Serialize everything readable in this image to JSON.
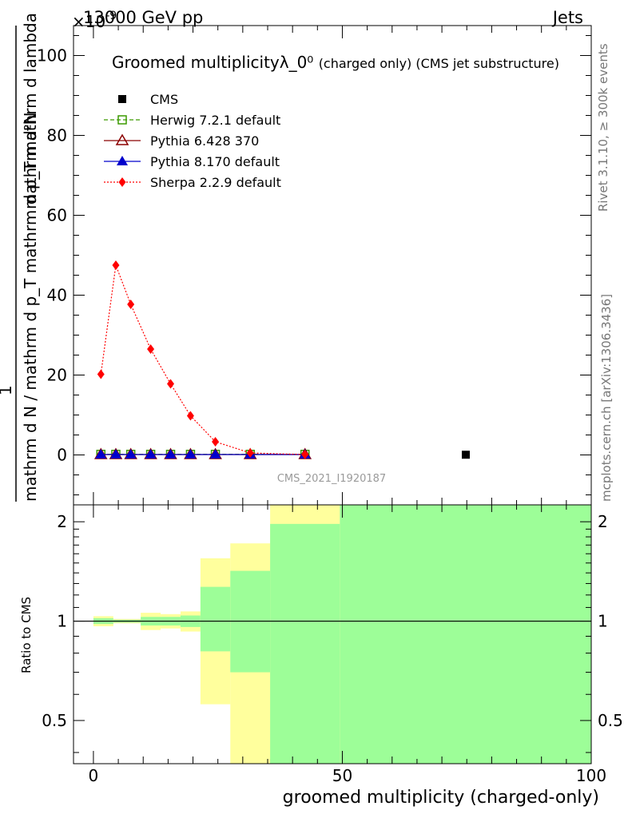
{
  "header": {
    "left": "13000 GeV pp",
    "right": "Jets",
    "exponent": "×10",
    "exponent_sup": "-9"
  },
  "side_labels": {
    "rivet": "Rivet 3.1.10, ≥ 300k events",
    "mcplots": "mcplots.cern.ch [arXiv:1306.3436]"
  },
  "watermark": "CMS_2021_I1920187",
  "colors": {
    "cms": "#000000",
    "herwig": "#3c9a00",
    "pythia6": "#8b0000",
    "pythia8": "#0000cc",
    "sherpa": "#ff0000",
    "band_inner": "#9dfe98",
    "band_outer": "#ffff9d"
  },
  "chart_data": [
    {
      "type": "line",
      "title": "Groomed multiplicityλ_0⁰",
      "title_suffix": "(charged only) (CMS jet substructure)",
      "ylabel_top": "mathrm d²N",
      "ylabel_bottom": "mathrm d N / mathrm d p_T mathrm d p_T mathrm d lambda",
      "ylabel_prefix": "1",
      "xlim": [
        -4,
        100
      ],
      "ylim": [
        -12.5,
        107.5
      ],
      "yticks": [
        0,
        20,
        40,
        60,
        80,
        100
      ],
      "x": [
        1.5,
        4.5,
        7.5,
        11.5,
        15.5,
        19.5,
        24.5,
        31.5,
        42.5
      ],
      "series": [
        {
          "name": "CMS",
          "x": [
            74.8
          ],
          "values": [
            0.05
          ],
          "marker": "square"
        },
        {
          "name": "Herwig 7.2.1 default",
          "values": [
            0.15,
            0.15,
            0.15,
            0.15,
            0.15,
            0.15,
            0.15,
            0.15,
            0.15
          ],
          "marker": "open-square",
          "style": "dashed"
        },
        {
          "name": "Pythia 6.428 370",
          "values": [
            0.1,
            0.1,
            0.1,
            0.1,
            0.1,
            0.1,
            0.1,
            0.1,
            0.1
          ],
          "marker": "open-triangle",
          "style": "solid"
        },
        {
          "name": "Pythia 8.170 default",
          "values": [
            0.1,
            0.1,
            0.1,
            0.1,
            0.1,
            0.1,
            0.1,
            0.1,
            0.1
          ],
          "marker": "filled-triangle",
          "style": "solid"
        },
        {
          "name": "Sherpa 2.2.9 default",
          "values": [
            20.2,
            47.5,
            37.7,
            26.5,
            17.8,
            9.8,
            3.3,
            0.5,
            0.1
          ],
          "marker": "diamond",
          "style": "dotted"
        }
      ]
    },
    {
      "type": "area",
      "ylabel": "Ratio to CMS",
      "xlabel": "groomed multiplicity (charged-only)",
      "xlim": [
        -4,
        100
      ],
      "ylim": [
        0.37,
        2.25
      ],
      "yticks": [
        0.5,
        1,
        2
      ],
      "ytick_labels": [
        "0.5",
        "1",
        "2"
      ],
      "xticks": [
        0,
        50,
        100
      ],
      "xtick_labels": [
        "0",
        "50",
        "100"
      ],
      "reference_line": 1,
      "bands": [
        {
          "x0": 0,
          "x1": 4,
          "inner": [
            0.98,
            1.02
          ],
          "outer": [
            0.965,
            1.035
          ]
        },
        {
          "x0": 4,
          "x1": 9.5,
          "inner": [
            0.99,
            1.01
          ],
          "outer": [
            0.985,
            1.015
          ]
        },
        {
          "x0": 9.5,
          "x1": 13.5,
          "inner": [
            0.97,
            1.03
          ],
          "outer": [
            0.94,
            1.06
          ]
        },
        {
          "x0": 13.5,
          "x1": 17.5,
          "inner": [
            0.97,
            1.03
          ],
          "outer": [
            0.95,
            1.05
          ]
        },
        {
          "x0": 17.5,
          "x1": 21.5,
          "inner": [
            0.96,
            1.04
          ],
          "outer": [
            0.93,
            1.07
          ]
        },
        {
          "x0": 21.5,
          "x1": 27.5,
          "inner": [
            0.81,
            1.27
          ],
          "outer": [
            0.56,
            1.55
          ]
        },
        {
          "x0": 27.5,
          "x1": 35.5,
          "inner": [
            0.7,
            1.42
          ],
          "outer": [
            0.3,
            1.72
          ]
        },
        {
          "x0": 35.5,
          "x1": 49.5,
          "inner": [
            0.3,
            1.97
          ],
          "outer": [
            0.3,
            2.6
          ]
        },
        {
          "x0": 49.5,
          "x1": 100,
          "inner": [
            0.3,
            2.6
          ],
          "outer": [
            0.3,
            2.6
          ]
        }
      ]
    }
  ]
}
